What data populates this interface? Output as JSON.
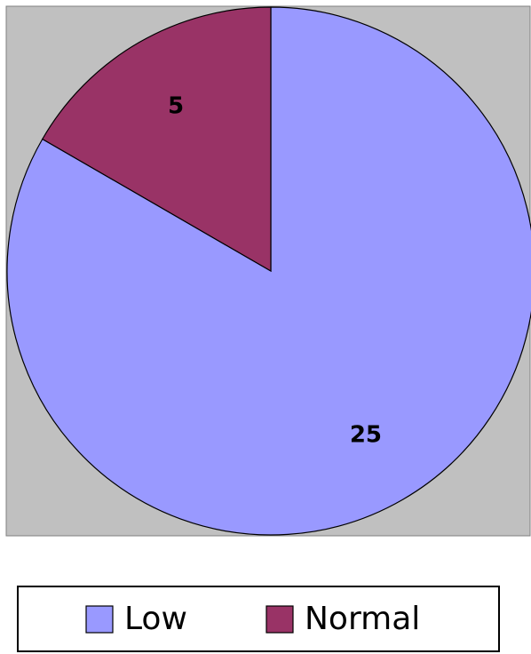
{
  "chart_data": {
    "type": "pie",
    "categories": [
      "Low",
      "Normal"
    ],
    "values": [
      25,
      5
    ],
    "colors": [
      "#9999ff",
      "#993366"
    ],
    "start_angle": 0,
    "direction": "clockwise",
    "legend": "bottom"
  }
}
